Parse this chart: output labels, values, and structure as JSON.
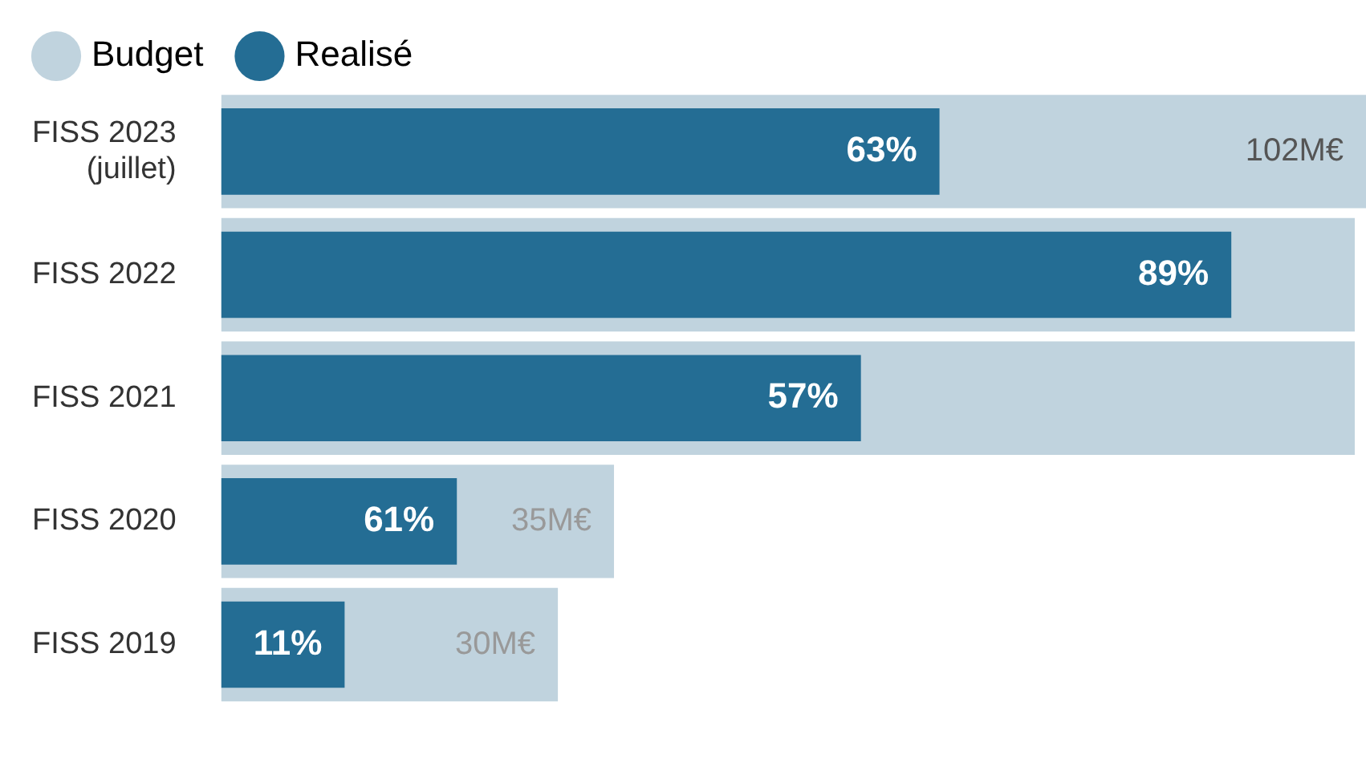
{
  "chart_data": {
    "type": "bar",
    "orientation": "horizontal",
    "categories": [
      "FISS 2023\n(juillet)",
      "FISS 2022",
      "FISS 2021",
      "FISS 2020",
      "FISS 2019"
    ],
    "series": [
      {
        "name": "Budget",
        "color": "#c0d3de",
        "values": [
          102,
          101,
          101,
          35,
          30
        ],
        "value_labels": [
          "102M€",
          null,
          null,
          "35M€",
          "30M€"
        ]
      },
      {
        "name": "Realisé",
        "color": "#246d94",
        "values": [
          64,
          90,
          57,
          21,
          11
        ]
      }
    ],
    "annotations": [
      {
        "text": "63%",
        "x": 64,
        "y": "FISS 2023\n(juillet)"
      },
      {
        "text": "89%",
        "x": 90,
        "y": "FISS 2022"
      },
      {
        "text": "57%",
        "x": 57,
        "y": "FISS 2021"
      },
      {
        "text": "61%",
        "x": 21,
        "y": "FISS 2020"
      },
      {
        "text": "11%",
        "x": 11,
        "y": "FISS 2019"
      }
    ],
    "legend": "top left",
    "tick_labels": "y"
  }
}
